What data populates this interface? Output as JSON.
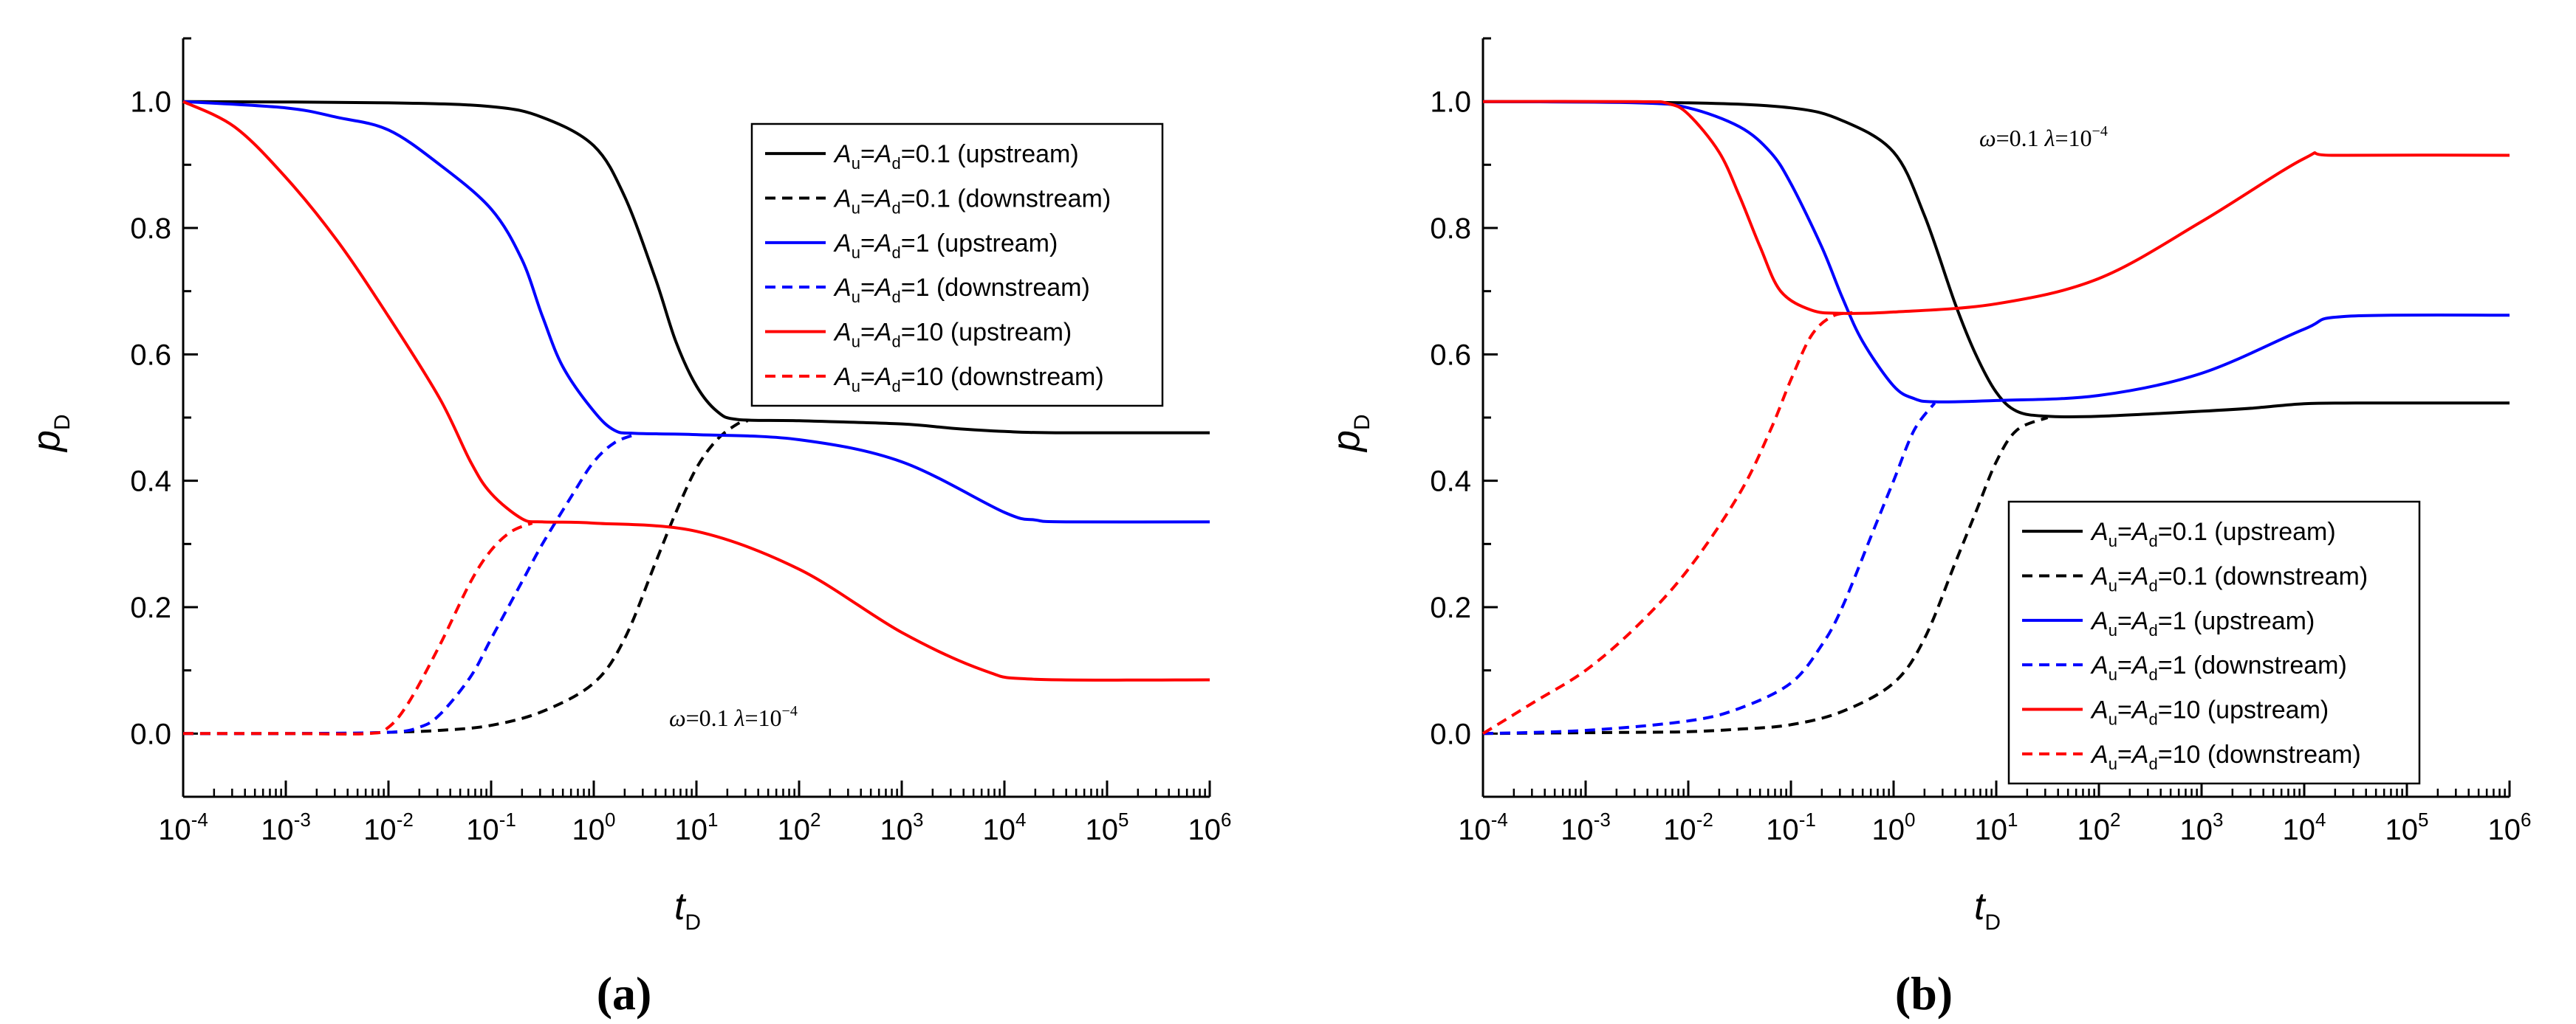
{
  "chart_data": [
    {
      "type": "line",
      "panel_label": "(a)",
      "xlabel": "t",
      "xlabel_sub": "D",
      "ylabel": "p",
      "ylabel_sub": "D",
      "xscale": "log",
      "xlim": [
        0.0001,
        1000000
      ],
      "ylim": [
        -0.1,
        1.1
      ],
      "x_ticks": [
        {
          "base": "10",
          "exp": "-4"
        },
        {
          "base": "10",
          "exp": "-3"
        },
        {
          "base": "10",
          "exp": "-2"
        },
        {
          "base": "10",
          "exp": "-1"
        },
        {
          "base": "10",
          "exp": "0"
        },
        {
          "base": "10",
          "exp": "1"
        },
        {
          "base": "10",
          "exp": "2"
        },
        {
          "base": "10",
          "exp": "3"
        },
        {
          "base": "10",
          "exp": "4"
        },
        {
          "base": "10",
          "exp": "5"
        },
        {
          "base": "10",
          "exp": "6"
        }
      ],
      "y_ticks": [
        "0.0",
        "0.2",
        "0.4",
        "0.6",
        "0.8",
        "1.0"
      ],
      "annotation": {
        "omega": "ω",
        "omega_val": "=0.1",
        "lambda": "λ",
        "lambda_val": "=10",
        "lambda_exp": "−4",
        "position": "bottom-center"
      },
      "legend": {
        "position": "top-right"
      },
      "series": [
        {
          "name": "Au=Ad=0.1 (upstream)",
          "A": "A",
          "sub_u": "u",
          "eq": "=",
          "sub_d": "d",
          "value_text": "=0.1 (upstream)",
          "color": "#000000",
          "dash": false,
          "points": [
            [
              -4,
              1.0
            ],
            [
              -2,
              0.998
            ],
            [
              -1,
              0.992
            ],
            [
              -0.5,
              0.975
            ],
            [
              0,
              0.93
            ],
            [
              0.3,
              0.85
            ],
            [
              0.6,
              0.72
            ],
            [
              0.8,
              0.62
            ],
            [
              1.0,
              0.55
            ],
            [
              1.2,
              0.51
            ],
            [
              1.4,
              0.497
            ],
            [
              2,
              0.495
            ],
            [
              3,
              0.49
            ],
            [
              3.5,
              0.483
            ],
            [
              4,
              0.478
            ],
            [
              4.5,
              0.476
            ],
            [
              6,
              0.476
            ]
          ]
        },
        {
          "name": "Au=Ad=0.1 (downstream)",
          "A": "A",
          "sub_u": "u",
          "eq": "=",
          "sub_d": "d",
          "value_text": "=0.1 (downstream)",
          "color": "#000000",
          "dash": true,
          "points": [
            [
              -4,
              0
            ],
            [
              -2.5,
              0
            ],
            [
              -2,
              0.002
            ],
            [
              -1.5,
              0.005
            ],
            [
              -1,
              0.013
            ],
            [
              -0.5,
              0.035
            ],
            [
              0,
              0.08
            ],
            [
              0.3,
              0.15
            ],
            [
              0.6,
              0.27
            ],
            [
              0.8,
              0.35
            ],
            [
              1.0,
              0.42
            ],
            [
              1.2,
              0.465
            ],
            [
              1.4,
              0.49
            ],
            [
              1.5,
              0.495
            ]
          ]
        },
        {
          "name": "Au=Ad=1 (upstream)",
          "A": "A",
          "sub_u": "u",
          "eq": "=",
          "sub_d": "d",
          "value_text": "=1 (upstream)",
          "color": "#0000ff",
          "dash": false,
          "points": [
            [
              -4,
              1.0
            ],
            [
              -3,
              0.99
            ],
            [
              -2.5,
              0.975
            ],
            [
              -2,
              0.955
            ],
            [
              -1.5,
              0.9
            ],
            [
              -1,
              0.83
            ],
            [
              -0.7,
              0.75
            ],
            [
              -0.5,
              0.66
            ],
            [
              -0.3,
              0.58
            ],
            [
              0,
              0.51
            ],
            [
              0.2,
              0.48
            ],
            [
              0.4,
              0.475
            ],
            [
              1,
              0.473
            ],
            [
              2,
              0.465
            ],
            [
              3,
              0.43
            ],
            [
              4,
              0.35
            ],
            [
              4.3,
              0.338
            ],
            [
              4.6,
              0.335
            ],
            [
              6,
              0.335
            ]
          ]
        },
        {
          "name": "Au=Ad=1 (downstream)",
          "A": "A",
          "sub_u": "u",
          "eq": "=",
          "sub_d": "d",
          "value_text": "=1 (downstream)",
          "color": "#0000ff",
          "dash": true,
          "points": [
            [
              -4,
              0
            ],
            [
              -3,
              0
            ],
            [
              -2,
              0.002
            ],
            [
              -1.7,
              0.01
            ],
            [
              -1.5,
              0.03
            ],
            [
              -1.2,
              0.09
            ],
            [
              -1,
              0.15
            ],
            [
              -0.7,
              0.24
            ],
            [
              -0.5,
              0.3
            ],
            [
              -0.2,
              0.38
            ],
            [
              0,
              0.43
            ],
            [
              0.2,
              0.46
            ],
            [
              0.4,
              0.473
            ]
          ]
        },
        {
          "name": "Au=Ad=10 (upstream)",
          "A": "A",
          "sub_u": "u",
          "eq": "=",
          "sub_d": "d",
          "value_text": "=10 (upstream)",
          "color": "#ff0000",
          "dash": false,
          "points": [
            [
              -4,
              1.0
            ],
            [
              -3.5,
              0.96
            ],
            [
              -3,
              0.88
            ],
            [
              -2.5,
              0.78
            ],
            [
              -2,
              0.66
            ],
            [
              -1.5,
              0.53
            ],
            [
              -1.2,
              0.43
            ],
            [
              -1,
              0.38
            ],
            [
              -0.7,
              0.34
            ],
            [
              -0.5,
              0.335
            ],
            [
              0,
              0.333
            ],
            [
              1,
              0.32
            ],
            [
              2,
              0.26
            ],
            [
              3,
              0.16
            ],
            [
              3.8,
              0.1
            ],
            [
              4.3,
              0.086
            ],
            [
              6,
              0.085
            ]
          ]
        },
        {
          "name": "Au=Ad=10 (downstream)",
          "A": "A",
          "sub_u": "u",
          "eq": "=",
          "sub_d": "d",
          "value_text": "=10 (downstream)",
          "color": "#ff0000",
          "dash": true,
          "points": [
            [
              -4,
              0
            ],
            [
              -3,
              0
            ],
            [
              -2.2,
              0
            ],
            [
              -2,
              0.01
            ],
            [
              -1.8,
              0.05
            ],
            [
              -1.5,
              0.14
            ],
            [
              -1.2,
              0.24
            ],
            [
              -1,
              0.29
            ],
            [
              -0.8,
              0.32
            ],
            [
              -0.6,
              0.333
            ]
          ]
        }
      ]
    },
    {
      "type": "line",
      "panel_label": "(b)",
      "xlabel": "t",
      "xlabel_sub": "D",
      "ylabel": "p",
      "ylabel_sub": "D",
      "xscale": "log",
      "xlim": [
        0.0001,
        1000000
      ],
      "ylim": [
        -0.1,
        1.1
      ],
      "x_ticks": [
        {
          "base": "10",
          "exp": "-4"
        },
        {
          "base": "10",
          "exp": "-3"
        },
        {
          "base": "10",
          "exp": "-2"
        },
        {
          "base": "10",
          "exp": "-1"
        },
        {
          "base": "10",
          "exp": "0"
        },
        {
          "base": "10",
          "exp": "1"
        },
        {
          "base": "10",
          "exp": "2"
        },
        {
          "base": "10",
          "exp": "3"
        },
        {
          "base": "10",
          "exp": "4"
        },
        {
          "base": "10",
          "exp": "5"
        },
        {
          "base": "10",
          "exp": "6"
        }
      ],
      "y_ticks": [
        "0.0",
        "0.2",
        "0.4",
        "0.6",
        "0.8",
        "1.0"
      ],
      "annotation": {
        "omega": "ω",
        "omega_val": "=0.1",
        "lambda": "λ",
        "lambda_val": "=10",
        "lambda_exp": "−4",
        "position": "top-center"
      },
      "legend": {
        "position": "bottom-right"
      },
      "series": [
        {
          "name": "Au=Ad=0.1 (upstream)",
          "A": "A",
          "sub_u": "u",
          "eq": "=",
          "sub_d": "d",
          "value_text": "=0.1 (upstream)",
          "color": "#000000",
          "dash": false,
          "points": [
            [
              -4,
              1.0
            ],
            [
              -2,
              0.998
            ],
            [
              -1,
              0.99
            ],
            [
              -0.5,
              0.97
            ],
            [
              0,
              0.92
            ],
            [
              0.3,
              0.82
            ],
            [
              0.6,
              0.68
            ],
            [
              0.8,
              0.6
            ],
            [
              1.0,
              0.54
            ],
            [
              1.2,
              0.51
            ],
            [
              1.5,
              0.502
            ],
            [
              2,
              0.502
            ],
            [
              3,
              0.51
            ],
            [
              3.5,
              0.515
            ],
            [
              4,
              0.522
            ],
            [
              4.5,
              0.523
            ],
            [
              6,
              0.523
            ]
          ]
        },
        {
          "name": "Au=Ad=0.1 (downstream)",
          "A": "A",
          "sub_u": "u",
          "eq": "=",
          "sub_d": "d",
          "value_text": "=0.1 (downstream)",
          "color": "#000000",
          "dash": true,
          "points": [
            [
              -4,
              0
            ],
            [
              -2.5,
              0.002
            ],
            [
              -2,
              0.003
            ],
            [
              -1.5,
              0.007
            ],
            [
              -1,
              0.014
            ],
            [
              -0.5,
              0.035
            ],
            [
              0,
              0.08
            ],
            [
              0.3,
              0.15
            ],
            [
              0.6,
              0.27
            ],
            [
              0.8,
              0.35
            ],
            [
              1.0,
              0.43
            ],
            [
              1.2,
              0.48
            ],
            [
              1.5,
              0.5
            ]
          ]
        },
        {
          "name": "Au=Ad=1 (upstream)",
          "A": "A",
          "sub_u": "u",
          "eq": "=",
          "sub_d": "d",
          "value_text": "=1 (upstream)",
          "color": "#0000ff",
          "dash": false,
          "points": [
            [
              -4,
              1.0
            ],
            [
              -2.5,
              0.998
            ],
            [
              -2,
              0.99
            ],
            [
              -1.5,
              0.96
            ],
            [
              -1.2,
              0.92
            ],
            [
              -1,
              0.87
            ],
            [
              -0.7,
              0.77
            ],
            [
              -0.5,
              0.69
            ],
            [
              -0.3,
              0.62
            ],
            [
              0,
              0.55
            ],
            [
              0.2,
              0.53
            ],
            [
              0.4,
              0.525
            ],
            [
              1,
              0.527
            ],
            [
              2,
              0.535
            ],
            [
              3,
              0.57
            ],
            [
              4,
              0.64
            ],
            [
              4.4,
              0.66
            ],
            [
              6,
              0.662
            ]
          ]
        },
        {
          "name": "Au=Ad=1 (downstream)",
          "A": "A",
          "sub_u": "u",
          "eq": "=",
          "sub_d": "d",
          "value_text": "=1 (downstream)",
          "color": "#0000ff",
          "dash": true,
          "points": [
            [
              -4,
              0
            ],
            [
              -3,
              0.005
            ],
            [
              -2,
              0.02
            ],
            [
              -1.5,
              0.04
            ],
            [
              -1,
              0.08
            ],
            [
              -0.7,
              0.14
            ],
            [
              -0.5,
              0.2
            ],
            [
              -0.2,
              0.32
            ],
            [
              0,
              0.4
            ],
            [
              0.2,
              0.48
            ],
            [
              0.4,
              0.523
            ]
          ]
        },
        {
          "name": "Au=Ad=10 (upstream)",
          "A": "A",
          "sub_u": "u",
          "eq": "=",
          "sub_d": "d",
          "value_text": "=10 (upstream)",
          "color": "#ff0000",
          "dash": false,
          "points": [
            [
              -4,
              1.0
            ],
            [
              -2.5,
              1.0
            ],
            [
              -2.2,
              0.997
            ],
            [
              -2,
              0.98
            ],
            [
              -1.7,
              0.92
            ],
            [
              -1.5,
              0.85
            ],
            [
              -1.3,
              0.77
            ],
            [
              -1.1,
              0.7
            ],
            [
              -0.8,
              0.67
            ],
            [
              -0.5,
              0.665
            ],
            [
              0,
              0.667
            ],
            [
              1,
              0.68
            ],
            [
              2,
              0.72
            ],
            [
              3,
              0.81
            ],
            [
              4,
              0.91
            ],
            [
              4.3,
              0.915
            ],
            [
              6,
              0.915
            ]
          ]
        },
        {
          "name": "Au=Ad=10 (downstream)",
          "A": "A",
          "sub_u": "u",
          "eq": "=",
          "sub_d": "d",
          "value_text": "=10 (downstream)",
          "color": "#ff0000",
          "dash": true,
          "points": [
            [
              -4,
              0
            ],
            [
              -3.5,
              0.05
            ],
            [
              -3,
              0.1
            ],
            [
              -2.5,
              0.17
            ],
            [
              -2,
              0.26
            ],
            [
              -1.5,
              0.38
            ],
            [
              -1.2,
              0.48
            ],
            [
              -1,
              0.56
            ],
            [
              -0.8,
              0.63
            ],
            [
              -0.6,
              0.66
            ],
            [
              -0.4,
              0.666
            ]
          ]
        }
      ]
    }
  ]
}
